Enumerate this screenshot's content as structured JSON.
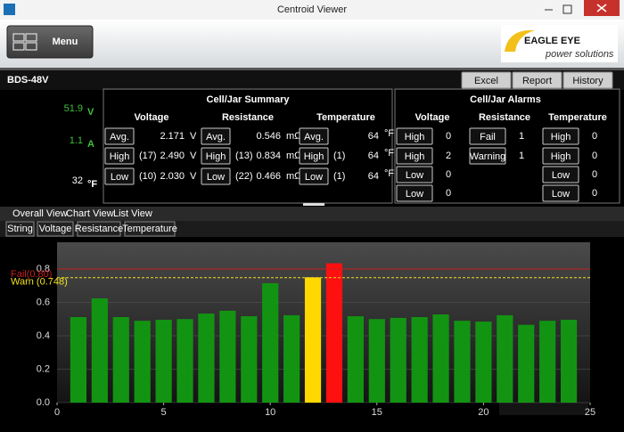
{
  "window": {
    "title": "Centroid Viewer"
  },
  "toolbar": {
    "menu": "Menu",
    "logo": "EAGLE EYE",
    "logo_sub": "power solutions"
  },
  "header": {
    "name": "BDS-48V",
    "buttons": [
      "Excel",
      "Report",
      "History"
    ]
  },
  "readings": [
    {
      "value": "51.9",
      "unit": "V",
      "color": "#3fbf3f"
    },
    {
      "value": "1.1",
      "unit": "A",
      "color": "#3fbf3f"
    },
    {
      "value": "32",
      "unit": "°F",
      "color": "#ffffff"
    }
  ],
  "summary": {
    "title": "Cell/Jar Summary",
    "columns": [
      {
        "label": "Voltage",
        "rows": [
          {
            "button": "Avg.",
            "value": "2.171",
            "unit": "V"
          },
          {
            "button": "High",
            "cell": "(17)",
            "value": "2.490",
            "unit": "V"
          },
          {
            "button": "Low",
            "cell": "(10)",
            "value": "2.030",
            "unit": "V"
          }
        ]
      },
      {
        "label": "Resistance",
        "rows": [
          {
            "button": "Avg.",
            "value": "0.546",
            "unit": "mΩ"
          },
          {
            "button": "High",
            "cell": "(13)",
            "value": "0.834",
            "unit": "mΩ"
          },
          {
            "button": "Low",
            "cell": "(22)",
            "value": "0.466",
            "unit": "mΩ"
          }
        ]
      },
      {
        "label": "Temperature",
        "rows": [
          {
            "button": "Avg.",
            "value": "64",
            "unit": "°F"
          },
          {
            "button": "High",
            "cell": "(1)",
            "value": "64",
            "unit": "°F"
          },
          {
            "button": "Low",
            "cell": "(1)",
            "value": "64",
            "unit": "°F"
          }
        ]
      }
    ]
  },
  "alarms": {
    "title": "Cell/Jar Alarms",
    "columns": [
      {
        "label": "Voltage",
        "rows": [
          {
            "button": "High",
            "count": "0"
          },
          {
            "button": "High",
            "count": "2"
          },
          {
            "button": "Low",
            "count": "0"
          },
          {
            "button": "Low",
            "count": "0"
          }
        ]
      },
      {
        "label": "Resistance",
        "rows": [
          {
            "button": "Fail",
            "count": "1"
          },
          {
            "button": "Warning",
            "count": "1"
          }
        ]
      },
      {
        "label": "Temperature",
        "rows": [
          {
            "button": "High",
            "count": "0"
          },
          {
            "button": "High",
            "count": "0"
          },
          {
            "button": "Low",
            "count": "0"
          },
          {
            "button": "Low",
            "count": "0"
          }
        ]
      }
    ]
  },
  "tabs": [
    "Overall View",
    "Chart View",
    "List View"
  ],
  "subtabs": [
    "String",
    "Voltage",
    "Resistance",
    "Temperature"
  ],
  "chart_data": {
    "type": "bar",
    "x": [
      1,
      2,
      3,
      4,
      5,
      6,
      7,
      8,
      9,
      10,
      11,
      12,
      13,
      14,
      15,
      16,
      17,
      18,
      19,
      20,
      21,
      22,
      23,
      24
    ],
    "values": [
      0.512,
      0.624,
      0.512,
      0.49,
      0.496,
      0.5,
      0.533,
      0.55,
      0.517,
      0.715,
      0.523,
      0.75,
      0.834,
      0.517,
      0.5,
      0.507,
      0.512,
      0.528,
      0.49,
      0.485,
      0.523,
      0.466,
      0.49,
      0.496
    ],
    "colors": [
      "#129412",
      "#129412",
      "#129412",
      "#129412",
      "#129412",
      "#129412",
      "#129412",
      "#129412",
      "#129412",
      "#129412",
      "#129412",
      "#ffd800",
      "#ff1010",
      "#129412",
      "#129412",
      "#129412",
      "#129412",
      "#129412",
      "#129412",
      "#129412",
      "#129412",
      "#129412",
      "#129412",
      "#129412"
    ],
    "xlim": [
      0,
      25
    ],
    "xticks": [
      0,
      5,
      10,
      15,
      20,
      25
    ],
    "ylim": [
      0,
      0.96
    ],
    "yticks": [
      {
        "value": 0,
        "label": "0.0"
      },
      0.2,
      0.4,
      0.6,
      0.8
    ],
    "grid": true,
    "thresholds": [
      {
        "name": "Fail(0.80)",
        "value": 0.8,
        "color": "#c81e1e"
      },
      {
        "name": "Warn (0.748)",
        "value": 0.748,
        "color": "#f0e020"
      }
    ]
  }
}
